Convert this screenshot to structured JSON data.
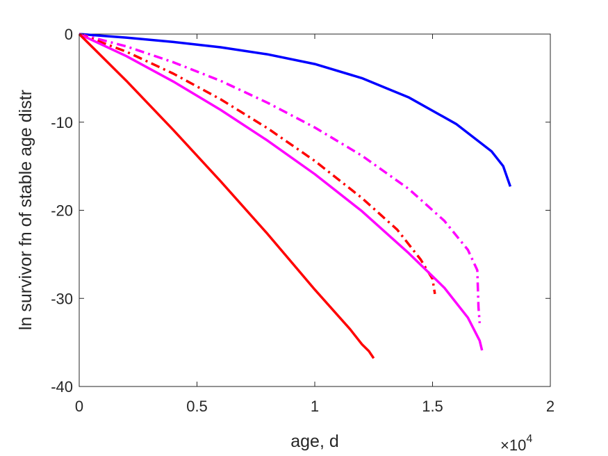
{
  "chart_data": {
    "type": "line",
    "xlabel": "age, d",
    "ylabel": "ln survivor fn of stable age distr",
    "x_multiplier_label": {
      "base": "×10",
      "exponent": "4"
    },
    "xlim": [
      0,
      20000
    ],
    "ylim": [
      -40,
      0
    ],
    "xticks": [
      0,
      5000,
      10000,
      15000,
      20000
    ],
    "xtick_labels": [
      "0",
      "0.5",
      "1",
      "1.5",
      "2"
    ],
    "yticks": [
      0,
      -10,
      -20,
      -30,
      -40
    ],
    "ytick_labels": [
      "0",
      "-10",
      "-20",
      "-30",
      "-40"
    ],
    "grid": false,
    "series": [
      {
        "color": "#0000ff",
        "style": "solid",
        "points": [
          [
            0,
            0
          ],
          [
            2000,
            -0.4
          ],
          [
            4000,
            -0.9
          ],
          [
            6000,
            -1.5
          ],
          [
            8000,
            -2.3
          ],
          [
            10000,
            -3.4
          ],
          [
            12000,
            -5.0
          ],
          [
            14000,
            -7.2
          ],
          [
            16000,
            -10.2
          ],
          [
            17500,
            -13.3
          ],
          [
            18000,
            -15.0
          ],
          [
            18300,
            -17.3
          ]
        ]
      },
      {
        "color": "#ff00ff",
        "style": "dashdot",
        "points": [
          [
            0,
            0
          ],
          [
            2000,
            -1.4
          ],
          [
            4000,
            -3.2
          ],
          [
            6000,
            -5.3
          ],
          [
            8000,
            -7.8
          ],
          [
            10000,
            -10.6
          ],
          [
            12000,
            -13.8
          ],
          [
            14000,
            -17.6
          ],
          [
            15500,
            -21.2
          ],
          [
            16500,
            -24.5
          ],
          [
            16900,
            -26.8
          ],
          [
            16950,
            -31.0
          ],
          [
            17000,
            -32.8
          ]
        ]
      },
      {
        "color": "#ff0000",
        "style": "dashdot",
        "points": [
          [
            0,
            0
          ],
          [
            2000,
            -2.0
          ],
          [
            4000,
            -4.5
          ],
          [
            6000,
            -7.4
          ],
          [
            8000,
            -10.7
          ],
          [
            10000,
            -14.4
          ],
          [
            12000,
            -18.6
          ],
          [
            13500,
            -22.2
          ],
          [
            14500,
            -25.6
          ],
          [
            15000,
            -27.8
          ],
          [
            15100,
            -29.5
          ]
        ]
      },
      {
        "color": "#ff00ff",
        "style": "solid",
        "points": [
          [
            0,
            0
          ],
          [
            2000,
            -2.5
          ],
          [
            4000,
            -5.4
          ],
          [
            6000,
            -8.6
          ],
          [
            8000,
            -12.1
          ],
          [
            10000,
            -15.9
          ],
          [
            12000,
            -20.1
          ],
          [
            14000,
            -24.9
          ],
          [
            15500,
            -28.8
          ],
          [
            16500,
            -32.2
          ],
          [
            17000,
            -34.8
          ],
          [
            17100,
            -35.9
          ]
        ]
      },
      {
        "color": "#ff0000",
        "style": "solid",
        "points": [
          [
            0,
            0
          ],
          [
            2000,
            -5.3
          ],
          [
            4000,
            -10.9
          ],
          [
            6000,
            -16.7
          ],
          [
            8000,
            -22.7
          ],
          [
            10000,
            -29.0
          ],
          [
            11500,
            -33.5
          ],
          [
            12000,
            -35.2
          ],
          [
            12300,
            -36.0
          ],
          [
            12500,
            -36.8
          ]
        ]
      }
    ]
  }
}
